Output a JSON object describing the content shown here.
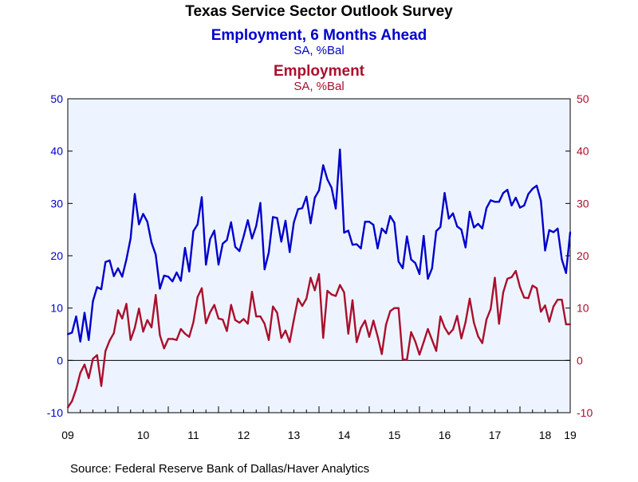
{
  "chart_data": {
    "type": "line",
    "title": "Texas Service Sector Outlook Survey",
    "source": "Source:  Federal Reserve Bank of Dallas/Haver Analytics",
    "series": [
      {
        "name": "Employment, 6 Months Ahead",
        "subtitle": "SA, %Bal",
        "color": "#0000cc",
        "axis": "left",
        "start": [
          2009,
          1
        ],
        "values": [
          5.0,
          5.3,
          8.4,
          3.6,
          9.1,
          3.9,
          11.3,
          14.0,
          13.6,
          18.8,
          19.1,
          16.1,
          17.6,
          16.0,
          19.3,
          23.3,
          31.8,
          26.0,
          28.0,
          26.5,
          22.5,
          20.2,
          13.7,
          16.2,
          16.0,
          15.1,
          16.8,
          15.2,
          21.5,
          17.0,
          24.7,
          26.0,
          31.2,
          18.3,
          23.2,
          24.8,
          18.3,
          22.3,
          23.0,
          26.4,
          21.7,
          20.9,
          23.7,
          26.8,
          23.3,
          25.7,
          30.1,
          17.4,
          20.6,
          27.4,
          27.2,
          22.7,
          26.7,
          20.7,
          26.4,
          28.9,
          29.1,
          31.3,
          26.2,
          31.1,
          32.5,
          37.3,
          34.6,
          33.0,
          29.0,
          40.3,
          24.4,
          24.8,
          22.1,
          22.2,
          21.4,
          26.5,
          26.5,
          25.9,
          21.4,
          25.2,
          24.3,
          27.6,
          26.3,
          18.9,
          17.6,
          23.7,
          19.3,
          18.6,
          16.5,
          23.8,
          15.6,
          17.6,
          24.7,
          25.5,
          32.0,
          27.1,
          28.1,
          25.6,
          25.0,
          21.6,
          28.4,
          25.4,
          26.1,
          25.2,
          29.1,
          30.6,
          30.3,
          30.3,
          32.0,
          32.6,
          29.6,
          31.1,
          29.2,
          29.6,
          31.8,
          32.8,
          33.4,
          30.5,
          21.0,
          24.9,
          24.5,
          25.2,
          19.3,
          16.7,
          24.5
        ]
      },
      {
        "name": "Employment",
        "subtitle": "SA, %Bal",
        "color": "#aa0f2d",
        "axis": "right",
        "start": [
          2009,
          1
        ],
        "values": [
          -9.0,
          -7.8,
          -5.5,
          -2.4,
          -0.8,
          -3.4,
          0.3,
          1.0,
          -4.9,
          1.8,
          3.8,
          5.2,
          9.6,
          8.0,
          10.8,
          3.9,
          6.2,
          9.9,
          5.5,
          7.7,
          6.3,
          12.5,
          4.8,
          2.3,
          4.1,
          4.1,
          3.9,
          6.0,
          5.1,
          4.5,
          7.3,
          12.1,
          13.8,
          7.1,
          9.2,
          10.6,
          8.0,
          7.8,
          5.6,
          10.6,
          7.7,
          7.2,
          7.9,
          7.0,
          13.1,
          8.4,
          8.4,
          7.0,
          3.9,
          10.3,
          9.1,
          4.3,
          5.7,
          3.5,
          7.8,
          11.8,
          10.4,
          11.8,
          15.8,
          13.4,
          16.5,
          4.3,
          13.3,
          12.6,
          12.3,
          14.4,
          13.0,
          5.1,
          11.5,
          3.5,
          6.2,
          7.6,
          4.5,
          7.6,
          4.6,
          1.2,
          6.8,
          9.4,
          10.0,
          10.0,
          0.2,
          0.1,
          5.4,
          3.6,
          1.1,
          3.5,
          6.0,
          3.9,
          1.8,
          8.4,
          6.3,
          5.0,
          5.9,
          8.5,
          4.2,
          7.3,
          11.8,
          7.2,
          4.6,
          3.3,
          7.8,
          9.8,
          15.8,
          7.0,
          13.0,
          15.6,
          15.9,
          17.1,
          14.0,
          12.0,
          11.9,
          14.3,
          13.8,
          9.3,
          10.5,
          7.4,
          10.3,
          11.6,
          11.6,
          6.9,
          6.9
        ]
      }
    ],
    "x_tick_labels": [
      "09",
      "10",
      "11",
      "12",
      "13",
      "14",
      "15",
      "16",
      "17",
      "18",
      "19"
    ],
    "x_range": [
      2009,
      2019
    ],
    "y_left": {
      "ylim": [
        -10,
        50
      ],
      "ticks": [
        -10,
        0,
        10,
        20,
        30,
        40,
        50
      ],
      "color": "#0000cc"
    },
    "y_right": {
      "ylim": [
        -10,
        50
      ],
      "ticks": [
        -10,
        0,
        10,
        20,
        30,
        40,
        50
      ],
      "color": "#aa0f2d"
    },
    "zero_line": true,
    "grid": false,
    "plot_background": "#eef4ff"
  }
}
